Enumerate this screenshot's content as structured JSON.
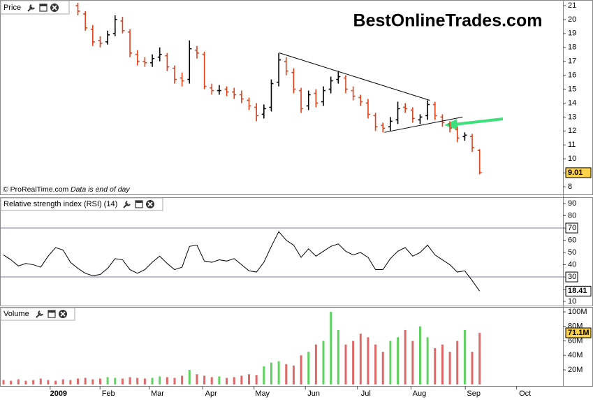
{
  "chart_data": [
    {
      "type": "ohlc",
      "title": "Price",
      "watermark": "BestOnlineTrades.com",
      "source": "© ProRealTime.com",
      "note": "Data is end of day",
      "up_color": "#000000",
      "down_color": "#e0401a",
      "open": [
        null,
        null,
        null,
        null,
        null,
        null,
        null,
        null,
        null,
        null,
        21.0,
        20.4,
        19.3,
        18.5,
        18.4,
        19.0,
        19.9,
        19.1,
        17.5,
        17.0,
        16.9,
        17.3,
        17.4,
        16.5,
        15.8,
        15.7,
        17.8,
        17.5,
        15.1,
        14.9,
        15.0,
        14.8,
        14.6,
        14.2,
        13.7,
        13.2,
        13.7,
        15.5,
        17.0,
        16.2,
        14.9,
        13.8,
        14.7,
        14.1,
        15.0,
        15.7,
        15.8,
        14.9,
        14.4,
        14.0,
        13.1,
        12.4,
        12.3,
        12.8,
        13.7,
        13.5,
        12.8,
        13.1,
        13.9,
        13.0,
        12.5,
        12.1,
        11.6,
        11.6,
        10.6
      ],
      "high": [
        null,
        null,
        null,
        null,
        null,
        null,
        null,
        null,
        null,
        null,
        21.2,
        20.6,
        19.6,
        18.8,
        19.2,
        20.3,
        20.2,
        19.3,
        17.8,
        17.3,
        17.5,
        18.0,
        17.6,
        16.7,
        16.2,
        18.5,
        18.1,
        17.7,
        15.4,
        15.3,
        15.2,
        15.1,
        14.9,
        14.4,
        14.0,
        13.9,
        15.7,
        17.6,
        17.3,
        16.5,
        15.1,
        14.9,
        15.0,
        15.2,
        15.9,
        16.3,
        16.0,
        15.2,
        14.6,
        14.3,
        13.3,
        12.6,
        13.0,
        14.1,
        14.0,
        13.7,
        13.2,
        14.2,
        14.1,
        13.2,
        12.7,
        12.3,
        11.9,
        11.8,
        10.7
      ],
      "low": [
        null,
        null,
        null,
        null,
        null,
        null,
        null,
        null,
        null,
        null,
        20.3,
        19.2,
        18.1,
        18.0,
        18.2,
        18.8,
        19.0,
        17.3,
        16.7,
        16.6,
        16.6,
        17.0,
        16.3,
        15.4,
        15.2,
        15.4,
        17.2,
        15.0,
        14.6,
        14.6,
        14.5,
        14.3,
        14.0,
        13.5,
        12.7,
        12.9,
        13.4,
        15.2,
        16.0,
        14.7,
        13.3,
        13.5,
        13.7,
        13.8,
        14.7,
        15.4,
        14.7,
        14.2,
        13.8,
        12.9,
        12.0,
        11.9,
        12.0,
        12.5,
        13.3,
        12.6,
        12.5,
        12.8,
        12.8,
        12.3,
        11.9,
        11.2,
        11.3,
        10.5,
        8.9
      ],
      "close": [
        null,
        null,
        null,
        null,
        null,
        null,
        null,
        null,
        null,
        null,
        20.6,
        19.4,
        18.4,
        18.3,
        18.9,
        20.0,
        19.2,
        17.6,
        17.0,
        16.9,
        17.2,
        17.5,
        16.6,
        15.7,
        15.6,
        17.9,
        17.6,
        15.2,
        14.9,
        14.9,
        14.8,
        14.6,
        14.3,
        13.8,
        13.1,
        13.6,
        15.4,
        17.1,
        16.3,
        15.0,
        13.6,
        14.6,
        14.0,
        14.9,
        15.6,
        15.9,
        15.0,
        14.5,
        14.1,
        13.2,
        12.3,
        12.2,
        12.7,
        13.6,
        13.6,
        12.9,
        13.0,
        13.9,
        13.1,
        12.6,
        12.2,
        11.5,
        11.7,
        10.8,
        9.01
      ],
      "trendlines": [
        {
          "x": [
            37.1,
            57.3
          ],
          "y": [
            17.6,
            14.2
          ]
        },
        {
          "x": [
            51.2,
            61.7
          ],
          "y": [
            11.9,
            13.0
          ]
        }
      ],
      "ylim": [
        7.45,
        21.35
      ],
      "yticks": [
        8,
        9,
        10,
        11,
        12,
        13,
        14,
        15,
        16,
        17,
        18,
        19,
        20,
        21
      ]
    },
    {
      "type": "line",
      "title": "Relative strength index (RSI) (14)",
      "color": "#000000",
      "values": [
        48,
        44,
        39,
        41,
        40,
        38,
        47,
        54,
        52,
        42,
        37,
        33,
        31,
        32,
        37,
        45,
        44,
        36,
        33,
        36,
        42,
        47,
        41,
        36,
        38,
        55,
        56,
        43,
        42,
        44,
        43,
        45,
        40,
        35,
        34,
        42,
        55,
        67,
        60,
        56,
        46,
        53,
        47,
        51,
        55,
        57,
        51,
        48,
        50,
        46,
        36,
        36,
        45,
        51,
        54,
        47,
        50,
        56,
        48,
        44,
        40,
        34,
        35,
        27,
        18.41
      ],
      "reference_lines": [
        70,
        30
      ],
      "ylim": [
        6.6,
        94.6
      ],
      "yticks": [
        10,
        20,
        30,
        40,
        50,
        60,
        70,
        80,
        90
      ]
    },
    {
      "type": "bar",
      "title": "Volume",
      "up_color": "#5fd35f",
      "down_color": "#e06767",
      "values": [
        6,
        5,
        7,
        5,
        6,
        8,
        6,
        5,
        7,
        6,
        8,
        9,
        7,
        8,
        10,
        9,
        8,
        10,
        9,
        8,
        9,
        11,
        10,
        9,
        12,
        20,
        14,
        12,
        10,
        11,
        9,
        10,
        12,
        14,
        13,
        25,
        30,
        32,
        28,
        26,
        40,
        45,
        55,
        60,
        100,
        75,
        55,
        60,
        70,
        65,
        55,
        45,
        60,
        65,
        75,
        60,
        80,
        65,
        50,
        55,
        45,
        60,
        75,
        45,
        71.1
      ],
      "last_value_label": "71.1M",
      "ylim": [
        -2.2,
        105.8
      ],
      "yticks": [
        {
          "value": 20,
          "label": "20M"
        },
        {
          "value": 40,
          "label": "40M"
        },
        {
          "value": 60,
          "label": "60M"
        },
        {
          "value": 80,
          "label": "80M"
        },
        {
          "value": 100,
          "label": "100M"
        }
      ],
      "xlim": [
        -0.47,
        75.2
      ],
      "xticks": [
        {
          "value": 7.4,
          "label": "2009"
        },
        {
          "value": 14.1,
          "label": "Feb"
        },
        {
          "value": 20.7,
          "label": "Mar"
        },
        {
          "value": 27.9,
          "label": "Apr"
        },
        {
          "value": 34.8,
          "label": "May"
        },
        {
          "value": 41.7,
          "label": "Jun"
        },
        {
          "value": 48.7,
          "label": "Jul"
        },
        {
          "value": 55.9,
          "label": "Aug"
        },
        {
          "value": 63.2,
          "label": "Sep"
        },
        {
          "value": 70.1,
          "label": "Oct"
        }
      ]
    }
  ]
}
